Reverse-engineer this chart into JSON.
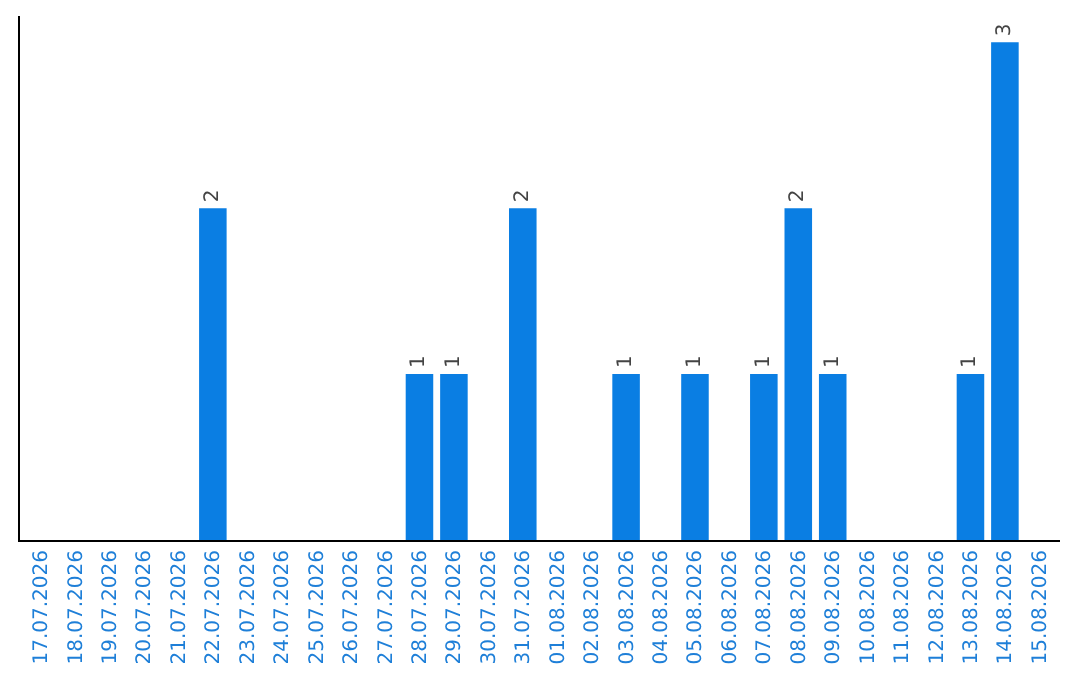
{
  "chart_data": {
    "type": "bar",
    "categories": [
      "17.07.2026",
      "18.07.2026",
      "19.07.2026",
      "20.07.2026",
      "21.07.2026",
      "22.07.2026",
      "23.07.2026",
      "24.07.2026",
      "25.07.2026",
      "26.07.2026",
      "27.07.2026",
      "28.07.2026",
      "29.07.2026",
      "30.07.2026",
      "31.07.2026",
      "01.08.2026",
      "02.08.2026",
      "03.08.2026",
      "04.08.2026",
      "05.08.2026",
      "06.08.2026",
      "07.08.2026",
      "08.08.2026",
      "09.08.2026",
      "10.08.2026",
      "11.08.2026",
      "12.08.2026",
      "13.08.2026",
      "14.08.2026",
      "15.08.2026"
    ],
    "values": [
      0,
      0,
      0,
      0,
      0,
      2,
      0,
      0,
      0,
      0,
      0,
      1,
      1,
      0,
      2,
      0,
      0,
      1,
      0,
      1,
      0,
      1,
      2,
      1,
      0,
      0,
      0,
      1,
      3,
      0
    ],
    "value_labels": [
      null,
      null,
      null,
      null,
      null,
      "2",
      null,
      null,
      null,
      null,
      null,
      "1",
      "1",
      null,
      "2",
      null,
      null,
      "1",
      null,
      "1",
      null,
      "1",
      "2",
      "1",
      null,
      null,
      null,
      "1",
      "3",
      null
    ],
    "color": "#0a7ee3",
    "grid": false
  }
}
